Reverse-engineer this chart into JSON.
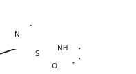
{
  "bg_color": "#ffffff",
  "line_color": "#1a1a1a",
  "line_width": 1.3,
  "font_size": 7.5,
  "figsize": [
    1.97,
    1.07
  ],
  "dpi": 100,
  "xlim": [
    0,
    197
  ],
  "ylim": [
    0,
    107
  ]
}
